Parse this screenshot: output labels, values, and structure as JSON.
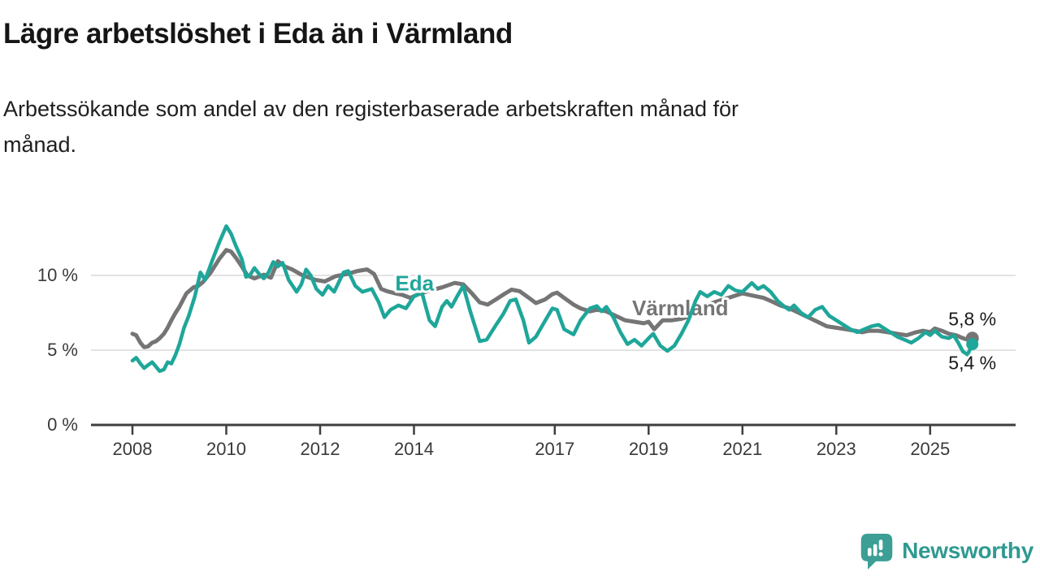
{
  "header": {
    "title": "Lägre arbetslöshet i Eda än i Värmland",
    "subtitle_line1": "Arbetssökande som andel av den registerbaserade arbetskraften månad för",
    "subtitle_line2": "månad."
  },
  "footer": {
    "brand": "Newsworthy"
  },
  "colors": {
    "eda": "#1fa69a",
    "varmland": "#757575",
    "axis": "#3f3f3f",
    "tick_text": "#3a3a3a",
    "grid": "#dadada",
    "value_label": "#1a1a1a",
    "logo": "#3c9e95"
  },
  "chart_data": {
    "type": "line",
    "title": "Lägre arbetslöshet i Eda än i Värmland",
    "subtitle": "Arbetssökande som andel av den registerbaserade arbetskraften månad för månad.",
    "x_unit": "year (monthly observations)",
    "y_unit": "percent of registered labour force",
    "x_range": [
      2008.0,
      2025.9
    ],
    "ylim": [
      0,
      14
    ],
    "grid_on": true,
    "grid_values": [
      5,
      10
    ],
    "x_ticks": [
      {
        "value": 2008,
        "label": "2008"
      },
      {
        "value": 2010,
        "label": "2010"
      },
      {
        "value": 2012,
        "label": "2012"
      },
      {
        "value": 2014,
        "label": "2014"
      },
      {
        "value": 2017,
        "label": "2017"
      },
      {
        "value": 2019,
        "label": "2019"
      },
      {
        "value": 2021,
        "label": "2021"
      },
      {
        "value": 2023,
        "label": "2023"
      },
      {
        "value": 2025,
        "label": "2025"
      }
    ],
    "y_ticks": [
      {
        "value": 0,
        "label": "0 %"
      },
      {
        "value": 5,
        "label": "5 %"
      },
      {
        "value": 10,
        "label": "10 %"
      }
    ],
    "legend_position": "inline-labels",
    "series": [
      {
        "id": "varmland",
        "name": "Värmland",
        "color": "#757575",
        "stroke_width": 5,
        "dot_radius": 8,
        "inline_label": {
          "text": "Värmland",
          "year": 2018.65,
          "value": 7.35
        },
        "end_label": {
          "text": "5,8 %",
          "position": "above"
        },
        "last_value": 5.8,
        "points": [
          [
            2008.0,
            6.1
          ],
          [
            2008.08,
            6.0
          ],
          [
            2008.17,
            5.5
          ],
          [
            2008.25,
            5.2
          ],
          [
            2008.33,
            5.25
          ],
          [
            2008.42,
            5.5
          ],
          [
            2008.5,
            5.6
          ],
          [
            2008.58,
            5.8
          ],
          [
            2008.67,
            6.1
          ],
          [
            2008.75,
            6.5
          ],
          [
            2008.83,
            7.0
          ],
          [
            2008.92,
            7.5
          ],
          [
            2009.0,
            7.9
          ],
          [
            2009.15,
            8.8
          ],
          [
            2009.3,
            9.2
          ],
          [
            2009.4,
            9.3
          ],
          [
            2009.5,
            9.55
          ],
          [
            2009.67,
            10.2
          ],
          [
            2009.85,
            11.1
          ],
          [
            2010.0,
            11.7
          ],
          [
            2010.1,
            11.6
          ],
          [
            2010.2,
            11.2
          ],
          [
            2010.33,
            10.6
          ],
          [
            2010.45,
            10.0
          ],
          [
            2010.6,
            9.8
          ],
          [
            2010.8,
            10.05
          ],
          [
            2010.95,
            9.85
          ],
          [
            2011.1,
            10.95
          ],
          [
            2011.25,
            10.6
          ],
          [
            2011.4,
            10.4
          ],
          [
            2011.6,
            10.05
          ],
          [
            2011.9,
            9.7
          ],
          [
            2012.1,
            9.6
          ],
          [
            2012.33,
            9.95
          ],
          [
            2012.58,
            10.1
          ],
          [
            2012.8,
            10.3
          ],
          [
            2013.0,
            10.4
          ],
          [
            2013.15,
            10.1
          ],
          [
            2013.3,
            9.1
          ],
          [
            2013.42,
            8.95
          ],
          [
            2013.6,
            8.8
          ],
          [
            2013.75,
            8.7
          ],
          [
            2013.92,
            8.5
          ],
          [
            2014.1,
            8.75
          ],
          [
            2014.35,
            9.0
          ],
          [
            2014.6,
            9.2
          ],
          [
            2014.87,
            9.5
          ],
          [
            2015.05,
            9.4
          ],
          [
            2015.22,
            8.85
          ],
          [
            2015.4,
            8.2
          ],
          [
            2015.57,
            8.05
          ],
          [
            2015.75,
            8.4
          ],
          [
            2015.92,
            8.75
          ],
          [
            2016.08,
            9.05
          ],
          [
            2016.25,
            8.95
          ],
          [
            2016.45,
            8.5
          ],
          [
            2016.6,
            8.15
          ],
          [
            2016.8,
            8.4
          ],
          [
            2016.95,
            8.75
          ],
          [
            2017.05,
            8.85
          ],
          [
            2017.2,
            8.5
          ],
          [
            2017.4,
            8.05
          ],
          [
            2017.55,
            7.8
          ],
          [
            2017.75,
            7.6
          ],
          [
            2017.9,
            7.7
          ],
          [
            2018.1,
            7.6
          ],
          [
            2018.3,
            7.3
          ],
          [
            2018.5,
            7.0
          ],
          [
            2018.7,
            6.9
          ],
          [
            2018.9,
            6.8
          ],
          [
            2019.0,
            6.9
          ],
          [
            2019.12,
            6.4
          ],
          [
            2019.3,
            7.0
          ],
          [
            2019.5,
            7.0
          ],
          [
            2019.7,
            7.1
          ],
          [
            2019.9,
            7.3
          ],
          [
            2020.1,
            7.8
          ],
          [
            2020.3,
            8.1
          ],
          [
            2020.5,
            8.3
          ],
          [
            2020.7,
            8.5
          ],
          [
            2020.9,
            8.7
          ],
          [
            2021.0,
            8.8
          ],
          [
            2021.15,
            8.7
          ],
          [
            2021.3,
            8.6
          ],
          [
            2021.45,
            8.5
          ],
          [
            2021.6,
            8.3
          ],
          [
            2021.8,
            8.0
          ],
          [
            2022.0,
            7.8
          ],
          [
            2022.2,
            7.5
          ],
          [
            2022.4,
            7.2
          ],
          [
            2022.6,
            6.9
          ],
          [
            2022.8,
            6.6
          ],
          [
            2023.0,
            6.5
          ],
          [
            2023.2,
            6.4
          ],
          [
            2023.4,
            6.3
          ],
          [
            2023.55,
            6.2
          ],
          [
            2023.7,
            6.3
          ],
          [
            2023.9,
            6.3
          ],
          [
            2024.1,
            6.2
          ],
          [
            2024.3,
            6.1
          ],
          [
            2024.5,
            6.0
          ],
          [
            2024.7,
            6.2
          ],
          [
            2024.85,
            6.3
          ],
          [
            2025.0,
            6.2
          ],
          [
            2025.1,
            6.45
          ],
          [
            2025.25,
            6.3
          ],
          [
            2025.4,
            6.1
          ],
          [
            2025.55,
            6.0
          ],
          [
            2025.7,
            5.8
          ],
          [
            2025.8,
            5.7
          ],
          [
            2025.9,
            5.8
          ]
        ]
      },
      {
        "id": "eda",
        "name": "Eda",
        "color": "#1fa69a",
        "stroke_width": 4.5,
        "dot_radius": 7.5,
        "inline_label": {
          "text": "Eda",
          "year": 2013.6,
          "value": 9.0
        },
        "end_label": {
          "text": "5,4 %",
          "position": "below"
        },
        "last_value": 5.4,
        "points": [
          [
            2008.0,
            4.3
          ],
          [
            2008.08,
            4.5
          ],
          [
            2008.17,
            4.1
          ],
          [
            2008.25,
            3.8
          ],
          [
            2008.33,
            4.0
          ],
          [
            2008.42,
            4.2
          ],
          [
            2008.5,
            3.9
          ],
          [
            2008.58,
            3.6
          ],
          [
            2008.67,
            3.7
          ],
          [
            2008.75,
            4.2
          ],
          [
            2008.83,
            4.1
          ],
          [
            2008.92,
            4.7
          ],
          [
            2009.0,
            5.4
          ],
          [
            2009.1,
            6.5
          ],
          [
            2009.2,
            7.3
          ],
          [
            2009.33,
            8.6
          ],
          [
            2009.45,
            10.2
          ],
          [
            2009.55,
            9.7
          ],
          [
            2009.7,
            11.0
          ],
          [
            2009.85,
            12.2
          ],
          [
            2010.0,
            13.3
          ],
          [
            2010.1,
            12.8
          ],
          [
            2010.2,
            12.0
          ],
          [
            2010.33,
            11.1
          ],
          [
            2010.42,
            9.9
          ],
          [
            2010.5,
            10.0
          ],
          [
            2010.6,
            10.5
          ],
          [
            2010.7,
            10.1
          ],
          [
            2010.8,
            9.8
          ],
          [
            2010.9,
            10.2
          ],
          [
            2011.0,
            10.9
          ],
          [
            2011.1,
            10.6
          ],
          [
            2011.2,
            10.85
          ],
          [
            2011.33,
            9.7
          ],
          [
            2011.5,
            8.9
          ],
          [
            2011.6,
            9.4
          ],
          [
            2011.7,
            10.4
          ],
          [
            2011.8,
            10.0
          ],
          [
            2011.92,
            9.1
          ],
          [
            2012.05,
            8.7
          ],
          [
            2012.17,
            9.3
          ],
          [
            2012.3,
            8.9
          ],
          [
            2012.42,
            9.7
          ],
          [
            2012.5,
            10.2
          ],
          [
            2012.6,
            10.3
          ],
          [
            2012.75,
            9.3
          ],
          [
            2012.9,
            8.9
          ],
          [
            2013.0,
            9.0
          ],
          [
            2013.1,
            9.1
          ],
          [
            2013.25,
            8.2
          ],
          [
            2013.37,
            7.2
          ],
          [
            2013.5,
            7.7
          ],
          [
            2013.67,
            8.0
          ],
          [
            2013.83,
            7.8
          ],
          [
            2014.0,
            8.6
          ],
          [
            2014.17,
            8.85
          ],
          [
            2014.33,
            7.0
          ],
          [
            2014.45,
            6.6
          ],
          [
            2014.6,
            7.9
          ],
          [
            2014.7,
            8.3
          ],
          [
            2014.8,
            7.9
          ],
          [
            2014.92,
            8.6
          ],
          [
            2015.05,
            9.3
          ],
          [
            2015.2,
            7.6
          ],
          [
            2015.4,
            5.6
          ],
          [
            2015.55,
            5.7
          ],
          [
            2015.75,
            6.7
          ],
          [
            2015.9,
            7.4
          ],
          [
            2016.05,
            8.3
          ],
          [
            2016.17,
            8.4
          ],
          [
            2016.33,
            7.0
          ],
          [
            2016.45,
            5.5
          ],
          [
            2016.6,
            5.9
          ],
          [
            2016.8,
            7.0
          ],
          [
            2016.95,
            7.8
          ],
          [
            2017.05,
            7.7
          ],
          [
            2017.2,
            6.4
          ],
          [
            2017.4,
            6.05
          ],
          [
            2017.55,
            7.0
          ],
          [
            2017.75,
            7.8
          ],
          [
            2017.9,
            7.95
          ],
          [
            2018.0,
            7.6
          ],
          [
            2018.1,
            7.9
          ],
          [
            2018.25,
            7.2
          ],
          [
            2018.4,
            6.2
          ],
          [
            2018.55,
            5.4
          ],
          [
            2018.7,
            5.7
          ],
          [
            2018.85,
            5.3
          ],
          [
            2019.0,
            5.8
          ],
          [
            2019.1,
            6.1
          ],
          [
            2019.25,
            5.3
          ],
          [
            2019.4,
            4.95
          ],
          [
            2019.55,
            5.3
          ],
          [
            2019.7,
            6.1
          ],
          [
            2019.85,
            7.0
          ],
          [
            2020.0,
            8.3
          ],
          [
            2020.1,
            8.9
          ],
          [
            2020.25,
            8.6
          ],
          [
            2020.4,
            8.9
          ],
          [
            2020.55,
            8.7
          ],
          [
            2020.7,
            9.3
          ],
          [
            2020.85,
            9.0
          ],
          [
            2021.0,
            8.9
          ],
          [
            2021.1,
            9.2
          ],
          [
            2021.2,
            9.5
          ],
          [
            2021.33,
            9.1
          ],
          [
            2021.45,
            9.3
          ],
          [
            2021.6,
            8.9
          ],
          [
            2021.75,
            8.3
          ],
          [
            2021.9,
            7.9
          ],
          [
            2022.0,
            7.7
          ],
          [
            2022.1,
            8.0
          ],
          [
            2022.25,
            7.5
          ],
          [
            2022.4,
            7.2
          ],
          [
            2022.55,
            7.7
          ],
          [
            2022.7,
            7.9
          ],
          [
            2022.85,
            7.3
          ],
          [
            2023.0,
            7.0
          ],
          [
            2023.15,
            6.7
          ],
          [
            2023.3,
            6.4
          ],
          [
            2023.45,
            6.2
          ],
          [
            2023.6,
            6.4
          ],
          [
            2023.75,
            6.6
          ],
          [
            2023.9,
            6.7
          ],
          [
            2024.0,
            6.5
          ],
          [
            2024.15,
            6.2
          ],
          [
            2024.3,
            5.9
          ],
          [
            2024.45,
            5.7
          ],
          [
            2024.6,
            5.5
          ],
          [
            2024.75,
            5.8
          ],
          [
            2024.9,
            6.2
          ],
          [
            2025.0,
            6.0
          ],
          [
            2025.1,
            6.3
          ],
          [
            2025.25,
            5.9
          ],
          [
            2025.4,
            5.8
          ],
          [
            2025.5,
            6.0
          ],
          [
            2025.6,
            5.5
          ],
          [
            2025.7,
            4.9
          ],
          [
            2025.8,
            4.7
          ],
          [
            2025.9,
            5.4
          ]
        ]
      }
    ]
  }
}
